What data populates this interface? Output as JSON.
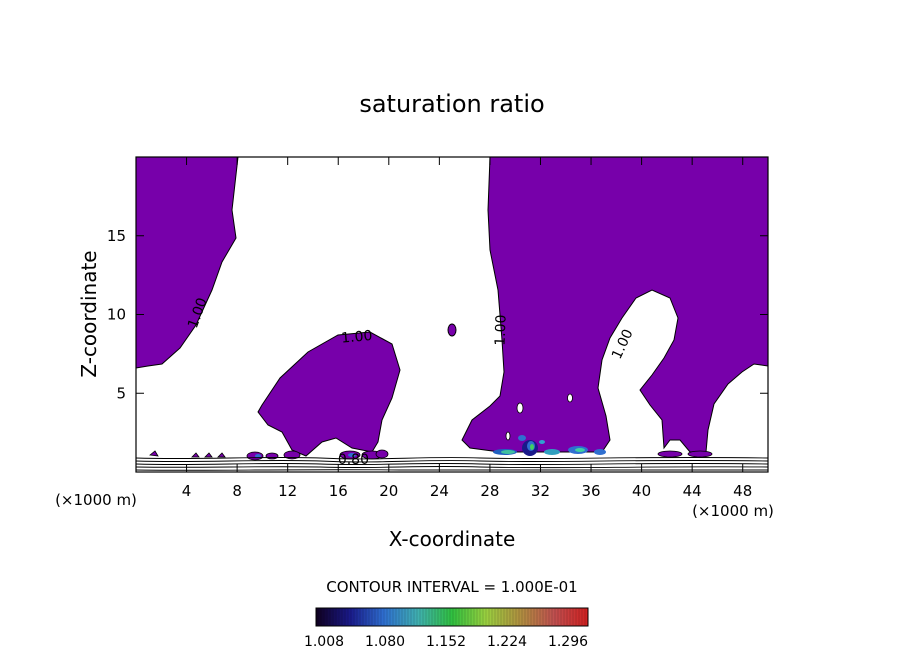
{
  "chart_data": {
    "type": "contour",
    "title": "saturation ratio",
    "xlabel": "X-coordinate",
    "ylabel": "Z-coordinate",
    "x_unit": "(×1000 m)",
    "xlim": [
      0,
      50
    ],
    "ylim": [
      0,
      20
    ],
    "x_ticks": [
      4,
      8,
      12,
      16,
      20,
      24,
      28,
      32,
      36,
      40,
      44,
      48
    ],
    "y_ticks": [
      5,
      10,
      15
    ],
    "fill_color": "#7700aa",
    "fill_threshold": 1.0,
    "contour_labels": [
      {
        "text": "1.00",
        "x": 5.2,
        "y": 10.0,
        "angle": -70
      },
      {
        "text": "1.00",
        "x": 17.5,
        "y": 8.3,
        "angle": -5
      },
      {
        "text": "1.00",
        "x": 29.2,
        "y": 9.0,
        "angle": -88
      },
      {
        "text": "1.00",
        "x": 38.8,
        "y": 8.0,
        "angle": -65
      },
      {
        "text": "0.80",
        "x": 17.2,
        "y": 0.5,
        "angle": 0
      }
    ],
    "contour_interval_text": "CONTOUR INTERVAL = 1.000E-01",
    "colorbar": {
      "labels": [
        "1.008",
        "1.080",
        "1.152",
        "1.224",
        "1.296"
      ],
      "colors": [
        "#100020",
        "#1a1a8a",
        "#2f6fd0",
        "#40b0b0",
        "#30c040",
        "#9ad040",
        "#b09040",
        "#c05050",
        "#d02020"
      ]
    }
  }
}
